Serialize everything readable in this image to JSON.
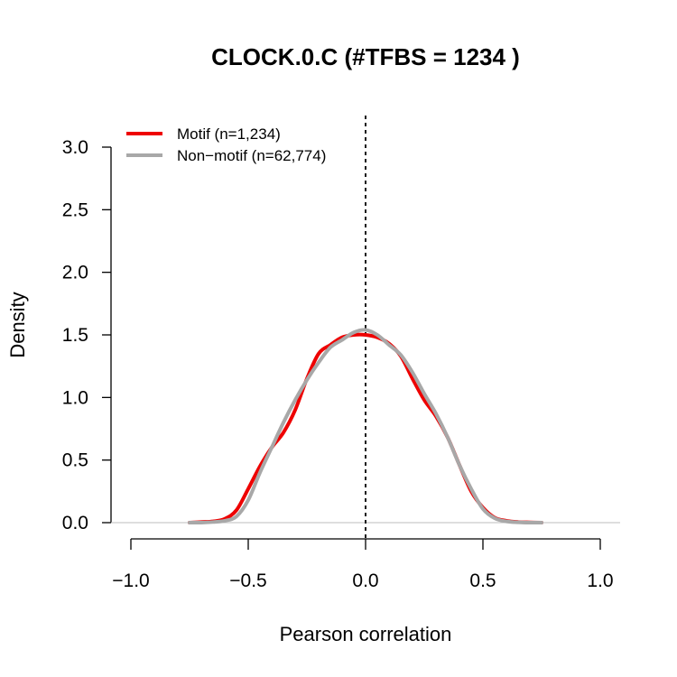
{
  "chart_data": {
    "type": "line",
    "title": "CLOCK.0.C (#TFBS = 1234 )",
    "xlabel": "Pearson correlation",
    "ylabel": "Density",
    "xlim": [
      -1.0,
      1.0
    ],
    "ylim": [
      0.0,
      3.0
    ],
    "x_ticks": [
      "−1.0",
      "−0.5",
      "0.0",
      "0.5",
      "1.0"
    ],
    "y_ticks": [
      "0.0",
      "0.5",
      "1.0",
      "1.5",
      "2.0",
      "2.5",
      "3.0"
    ],
    "x_tick_values": [
      -1.0,
      -0.5,
      0.0,
      0.5,
      1.0
    ],
    "y_tick_values": [
      0.0,
      0.5,
      1.0,
      1.5,
      2.0,
      2.5,
      3.0
    ],
    "vline_x": 0.0,
    "legend_position": "top-left",
    "series": [
      {
        "name": "Motif (n=1,234)",
        "color": "#ee0000",
        "x": [
          -0.75,
          -0.7,
          -0.65,
          -0.6,
          -0.55,
          -0.5,
          -0.45,
          -0.4,
          -0.35,
          -0.3,
          -0.25,
          -0.2,
          -0.15,
          -0.1,
          -0.05,
          0.0,
          0.05,
          0.1,
          0.15,
          0.2,
          0.25,
          0.3,
          0.35,
          0.4,
          0.45,
          0.5,
          0.55,
          0.6,
          0.65,
          0.7,
          0.75
        ],
        "y": [
          0.0,
          0.005,
          0.01,
          0.03,
          0.1,
          0.27,
          0.45,
          0.6,
          0.72,
          0.9,
          1.15,
          1.35,
          1.42,
          1.48,
          1.5,
          1.5,
          1.48,
          1.43,
          1.33,
          1.15,
          0.98,
          0.85,
          0.68,
          0.46,
          0.25,
          0.12,
          0.04,
          0.015,
          0.005,
          0.002,
          0.0
        ]
      },
      {
        "name": "Non−motif (n=62,774)",
        "color": "#a8a8a8",
        "x": [
          -0.75,
          -0.7,
          -0.65,
          -0.6,
          -0.55,
          -0.5,
          -0.45,
          -0.4,
          -0.35,
          -0.3,
          -0.25,
          -0.2,
          -0.15,
          -0.1,
          -0.05,
          0.0,
          0.05,
          0.1,
          0.15,
          0.2,
          0.25,
          0.3,
          0.35,
          0.4,
          0.45,
          0.5,
          0.55,
          0.6,
          0.65,
          0.7,
          0.75
        ],
        "y": [
          0.0,
          0.0,
          0.005,
          0.015,
          0.05,
          0.18,
          0.4,
          0.6,
          0.8,
          0.98,
          1.14,
          1.28,
          1.4,
          1.46,
          1.52,
          1.54,
          1.5,
          1.42,
          1.34,
          1.2,
          1.03,
          0.87,
          0.68,
          0.46,
          0.27,
          0.11,
          0.035,
          0.01,
          0.003,
          0.0,
          0.0
        ]
      }
    ]
  }
}
